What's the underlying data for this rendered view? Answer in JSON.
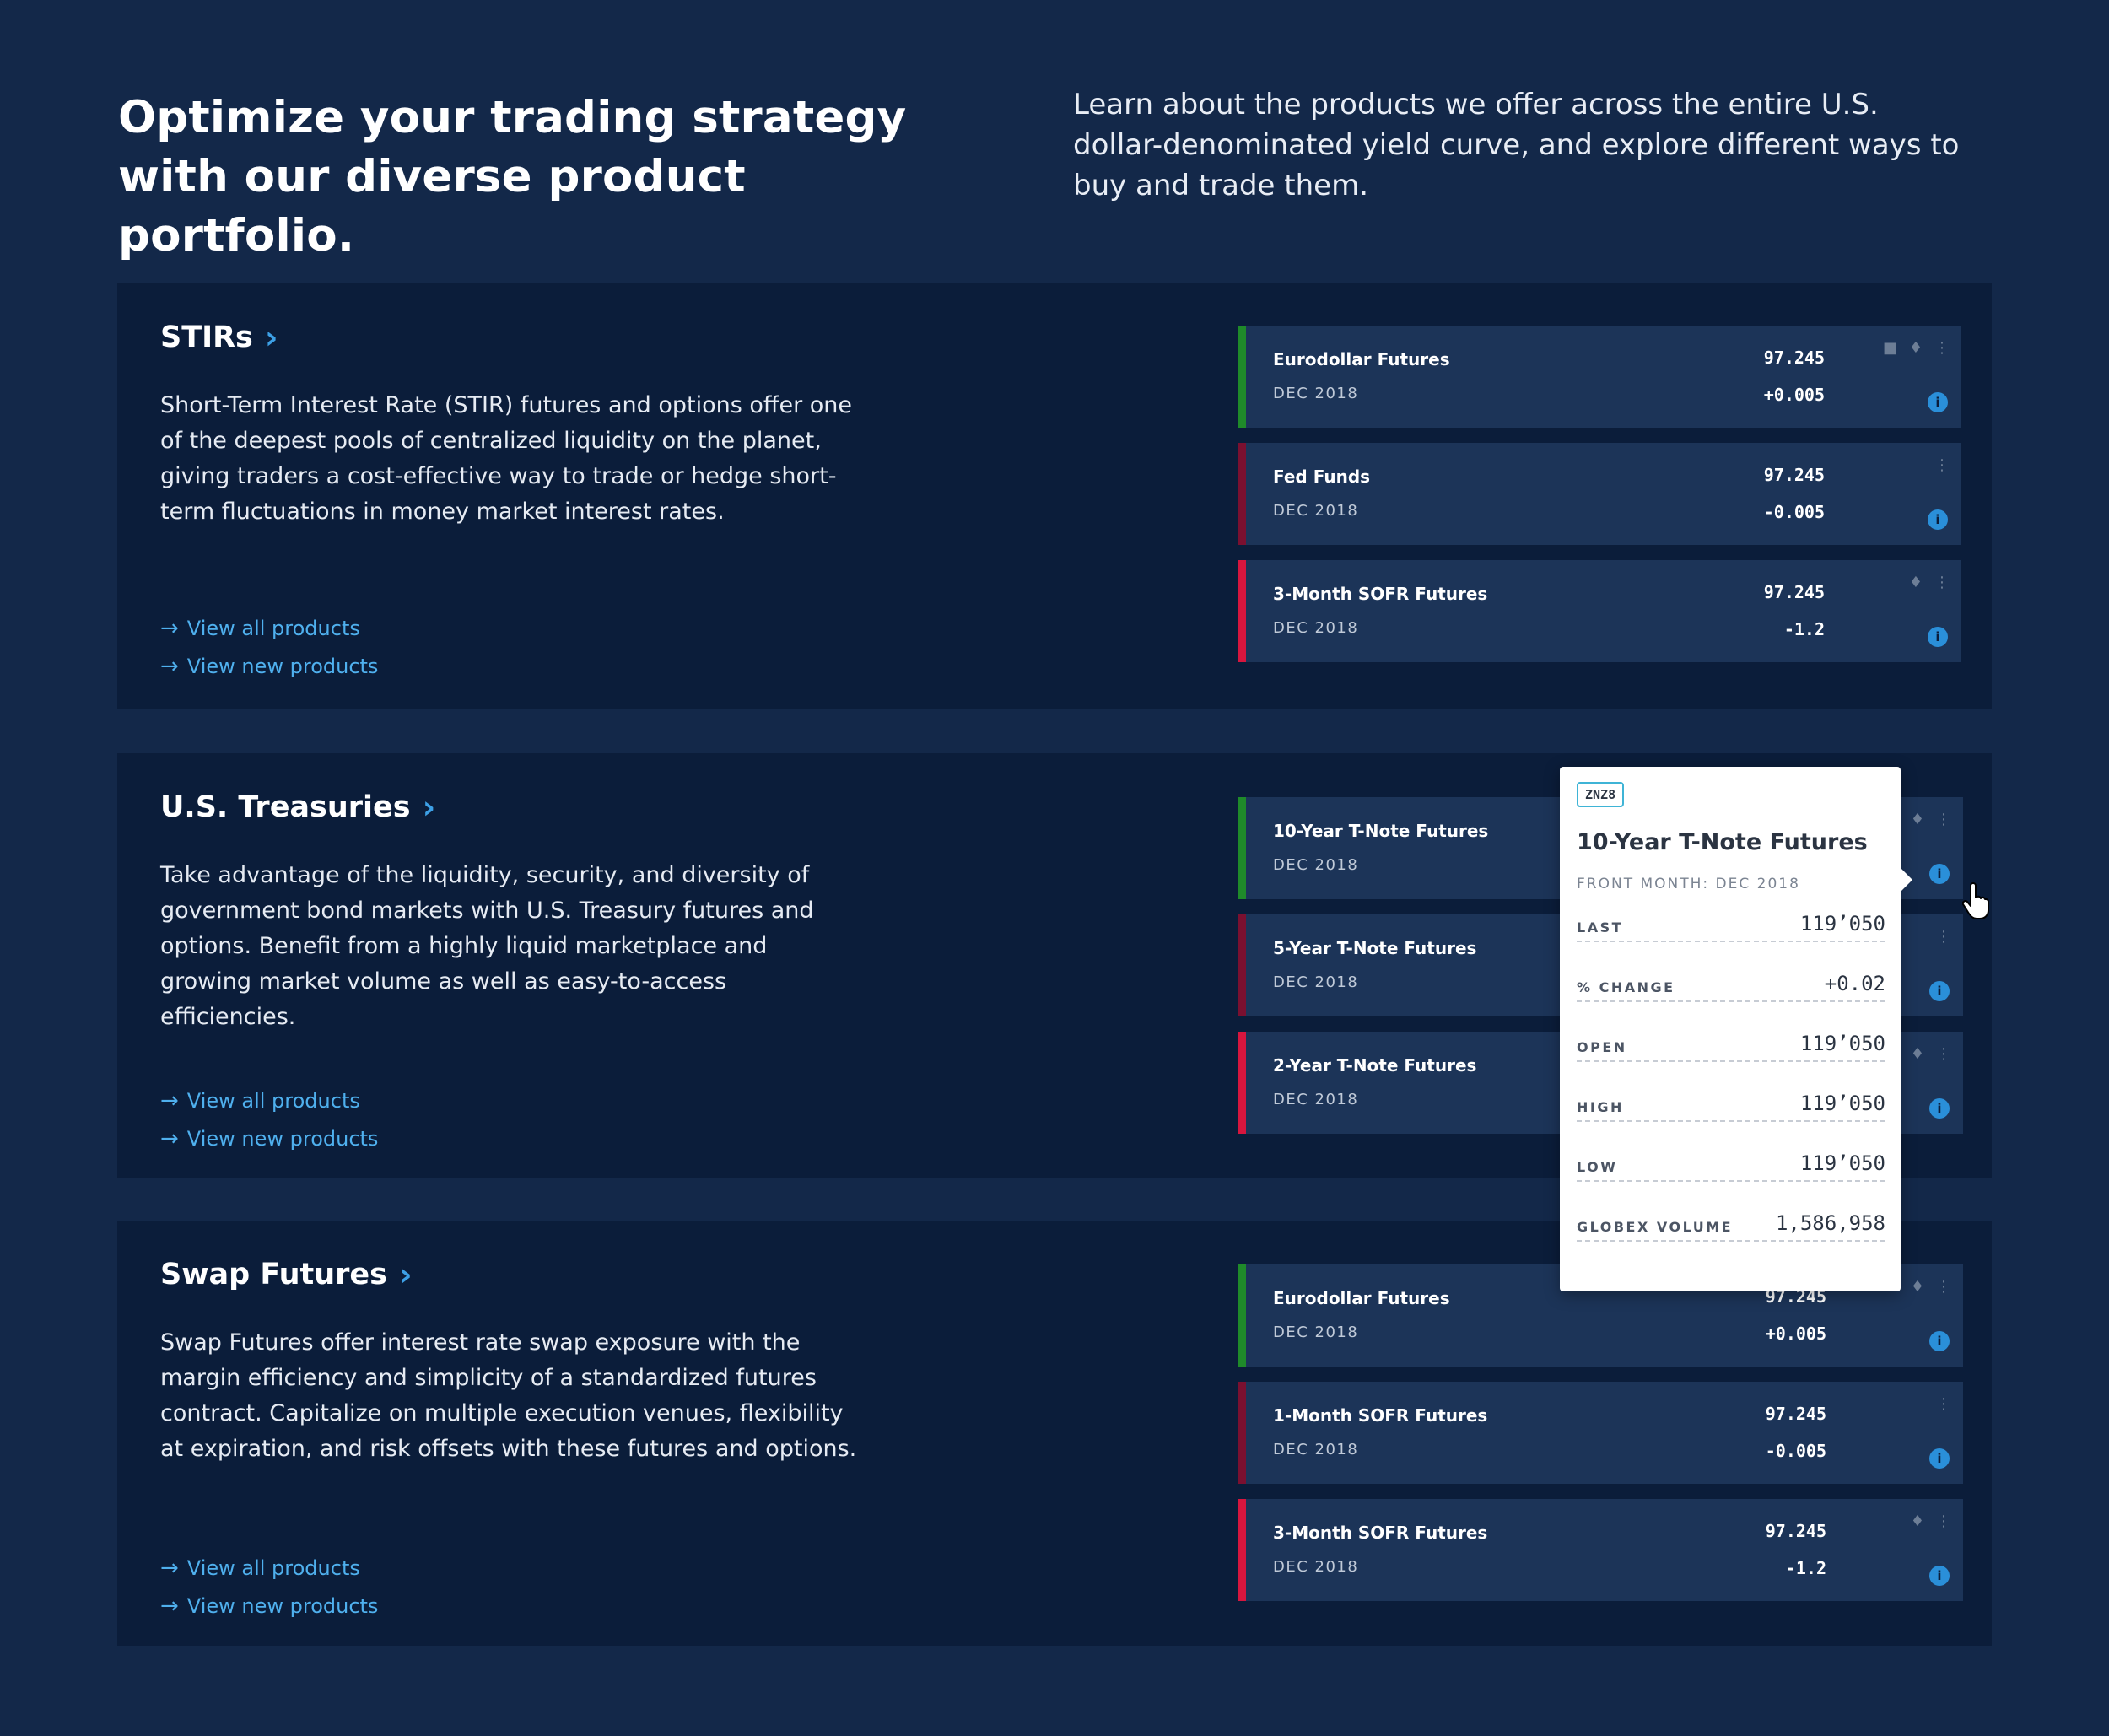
{
  "header": {
    "headline": "Optimize your trading strategy with our diverse product portfolio.",
    "intro": "Learn about the products we offer across the entire U.S. dollar-denominated yield curve, and explore different ways to buy and trade them."
  },
  "sections": [
    {
      "title": "STIRs",
      "description": "Short-Term Interest Rate (STIR) futures and options offer one of the deepest pools of centralized liquidity on the planet, giving traders a cost-effective way to trade or hedge short-term fluctuations in money market interest rates.",
      "links": [
        "View all products",
        "View new products"
      ],
      "cards": [
        {
          "name": "Eurodollar Futures",
          "month": "DEC 2018",
          "price": "97.245",
          "change": "+0.005",
          "color": "#1f8a2a",
          "icons": [
            "briefcase-icon",
            "bell-icon",
            "more-icon"
          ]
        },
        {
          "name": "Fed Funds",
          "month": "DEC 2018",
          "price": "97.245",
          "change": "-0.005",
          "color": "#7a1030",
          "icons": [
            "more-icon"
          ]
        },
        {
          "name": "3-Month SOFR Futures",
          "month": "DEC 2018",
          "price": "97.245",
          "change": "-1.2",
          "color": "#d7163e",
          "icons": [
            "bell-icon",
            "more-icon"
          ]
        }
      ]
    },
    {
      "title": "U.S. Treasuries",
      "description": "Take advantage of the liquidity, security, and diversity of government bond markets with U.S. Treasury futures and options. Benefit from a highly liquid marketplace and growing market volume as well as easy-to-access efficiencies.",
      "links": [
        "View all products",
        "View new products"
      ],
      "cards": [
        {
          "name": "10-Year T-Note Futures",
          "month": "DEC 2018",
          "price": "",
          "change": "",
          "color": "#1f8a2a",
          "icons": [
            "bell-icon",
            "more-icon"
          ]
        },
        {
          "name": "5-Year T-Note Futures",
          "month": "DEC 2018",
          "price": "",
          "change": "",
          "color": "#7a1030",
          "icons": [
            "more-icon"
          ]
        },
        {
          "name": "2-Year T-Note Futures",
          "month": "DEC 2018",
          "price": "",
          "change": "",
          "color": "#d7163e",
          "icons": [
            "bell-icon",
            "more-icon"
          ]
        }
      ]
    },
    {
      "title": "Swap Futures",
      "description": "Swap Futures offer interest rate swap exposure with the margin efficiency and simplicity of a standardized futures contract. Capitalize on multiple execution venues, flexibility at expiration, and risk offsets with these futures and options.",
      "links": [
        "View all products",
        "View new products"
      ],
      "cards": [
        {
          "name": "Eurodollar Futures",
          "month": "DEC 2018",
          "price": "97.245",
          "change": "+0.005",
          "color": "#1f8a2a",
          "icons": [
            "bell-icon",
            "more-icon"
          ]
        },
        {
          "name": "1-Month SOFR Futures",
          "month": "DEC 2018",
          "price": "97.245",
          "change": "-0.005",
          "color": "#7a1030",
          "icons": [
            "more-icon"
          ]
        },
        {
          "name": "3-Month SOFR Futures",
          "month": "DEC 2018",
          "price": "97.245",
          "change": "-1.2",
          "color": "#d7163e",
          "icons": [
            "bell-icon",
            "more-icon"
          ]
        }
      ]
    }
  ],
  "popup": {
    "code": "ZNZ8",
    "title": "10-Year T-Note Futures",
    "front_month": "FRONT MONTH: DEC 2018",
    "rows": [
      {
        "label": "LAST",
        "value": "119’050"
      },
      {
        "label": "% CHANGE",
        "value": "+0.02"
      },
      {
        "label": "OPEN",
        "value": "119’050"
      },
      {
        "label": "HIGH",
        "value": "119’050"
      },
      {
        "label": "LOW",
        "value": "119’050"
      },
      {
        "label": "GLOBEX VOLUME",
        "value": "1,586,958"
      }
    ]
  },
  "colors": {
    "background": "#132849",
    "panel": "#0b1d3a",
    "card": "#1c3458",
    "accent": "#4fb0ee"
  }
}
